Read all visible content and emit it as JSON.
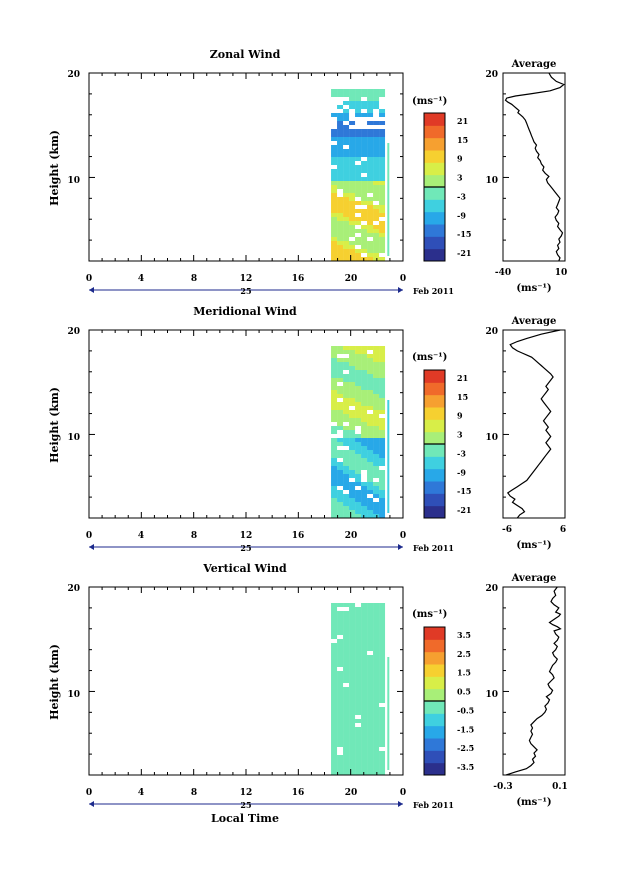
{
  "figure": {
    "xlabel_bottom": "Local Time",
    "x_ticks": [
      "0",
      "4",
      "8",
      "12",
      "16",
      "20",
      "0"
    ],
    "date_day": "25",
    "date_month_year": "Feb 2011",
    "colorbar_unit": "(ms⁻¹)",
    "avg_unit": "(ms⁻¹)"
  },
  "chart_data": [
    {
      "type": "heatmap",
      "title": "Zonal Wind",
      "ylabel": "Height (km)",
      "xlim": [
        0,
        24
      ],
      "ylim": [
        2,
        20
      ],
      "y_ticks": [
        "20",
        "10"
      ],
      "colorbar_ticks": [
        "21",
        "15",
        "9",
        "3",
        "-3",
        "-9",
        "-15",
        "-21"
      ],
      "colorbar_range": [
        -24,
        24
      ],
      "data_x_range": [
        18.5,
        22.3
      ],
      "profile": {
        "title": "Average",
        "x_ticks": [
          "-40",
          "10"
        ],
        "xlim": [
          -40,
          10
        ],
        "x": [
          5,
          6,
          4,
          3,
          5,
          4,
          6,
          5,
          7,
          8,
          6,
          4,
          5,
          3,
          2,
          4,
          5,
          3,
          4,
          5,
          6,
          4,
          2,
          0,
          -2,
          -4,
          -5,
          -3,
          -6,
          -8,
          -7,
          -9,
          -10,
          -12,
          -11,
          -13,
          -14,
          -13,
          -15,
          -16,
          -17,
          -18,
          -19,
          -20,
          -21,
          -22,
          -24,
          -26,
          -28,
          -27,
          -29,
          -31,
          -33,
          -36,
          -38,
          -37,
          -30,
          -18,
          -2,
          6,
          9,
          3,
          -1,
          -3
        ],
        "heights": [
          2.0,
          2.3,
          2.6,
          2.9,
          3.2,
          3.5,
          3.8,
          4.1,
          4.4,
          4.7,
          5.0,
          5.3,
          5.6,
          5.9,
          6.2,
          6.5,
          6.8,
          7.1,
          7.4,
          7.7,
          8.0,
          8.3,
          8.6,
          8.9,
          9.2,
          9.5,
          9.8,
          10.1,
          10.4,
          10.7,
          11.0,
          11.3,
          11.6,
          11.9,
          12.2,
          12.5,
          12.8,
          13.1,
          13.4,
          13.7,
          14.0,
          14.3,
          14.6,
          14.9,
          15.2,
          15.5,
          15.8,
          16.0,
          16.2,
          16.4,
          16.6,
          16.8,
          17.0,
          17.2,
          17.4,
          17.6,
          17.8,
          18.0,
          18.3,
          18.6,
          18.9,
          19.2,
          19.6,
          20.0
        ]
      }
    },
    {
      "type": "heatmap",
      "title": "Meridional Wind",
      "ylabel": "Height (km)",
      "xlim": [
        0,
        24
      ],
      "ylim": [
        2,
        20
      ],
      "y_ticks": [
        "20",
        "10"
      ],
      "colorbar_ticks": [
        "21",
        "15",
        "9",
        "3",
        "-3",
        "-9",
        "-15",
        "-21"
      ],
      "colorbar_range": [
        -24,
        24
      ],
      "data_x_range": [
        18.5,
        22.3
      ],
      "profile": {
        "title": "Average",
        "x_ticks": [
          "-6",
          "6"
        ],
        "xlim": [
          -7,
          6
        ],
        "x": [
          -4,
          -3.5,
          -2.5,
          -3,
          -4,
          -5,
          -4.5,
          -5.5,
          -6,
          -5,
          -4,
          -3,
          -2,
          -1.5,
          -1,
          -0.5,
          0,
          0.5,
          1,
          1.5,
          2,
          2.5,
          3,
          2.5,
          2,
          2.5,
          3,
          2.5,
          2,
          2.5,
          2,
          1.5,
          2,
          2.5,
          3,
          2.5,
          2,
          1.5,
          1,
          1.5,
          2,
          2.5,
          2,
          2.5,
          3,
          3.5,
          3,
          2.5,
          2,
          1.5,
          1,
          0.5,
          0,
          -0.5,
          -1,
          -2,
          -3,
          -4,
          -5,
          -5.5,
          -4,
          -2,
          1,
          5
        ],
        "heights": [
          2.0,
          2.3,
          2.6,
          2.9,
          3.2,
          3.5,
          3.8,
          4.1,
          4.4,
          4.7,
          5.0,
          5.3,
          5.6,
          5.9,
          6.2,
          6.5,
          6.8,
          7.1,
          7.4,
          7.7,
          8.0,
          8.3,
          8.6,
          8.9,
          9.2,
          9.5,
          9.8,
          10.1,
          10.4,
          10.7,
          11.0,
          11.3,
          11.6,
          11.9,
          12.2,
          12.5,
          12.8,
          13.1,
          13.4,
          13.7,
          14.0,
          14.3,
          14.6,
          14.9,
          15.2,
          15.5,
          15.8,
          16.0,
          16.2,
          16.4,
          16.6,
          16.8,
          17.0,
          17.2,
          17.4,
          17.6,
          17.8,
          18.0,
          18.3,
          18.6,
          18.9,
          19.2,
          19.6,
          20.0
        ]
      }
    },
    {
      "type": "heatmap",
      "title": "Vertical Wind",
      "ylabel": "Height (km)",
      "xlim": [
        0,
        24
      ],
      "ylim": [
        2,
        20
      ],
      "y_ticks": [
        "20",
        "10"
      ],
      "colorbar_ticks": [
        "3.5",
        "2.5",
        "1.5",
        "0.5",
        "-0.5",
        "-1.5",
        "-2.5",
        "-3.5"
      ],
      "colorbar_range": [
        -4,
        4
      ],
      "data_x_range": [
        18.5,
        22.3
      ],
      "profile": {
        "title": "Average",
        "x_ticks": [
          "-0.3",
          "0.1"
        ],
        "xlim": [
          -0.3,
          0.1
        ],
        "x": [
          -0.28,
          -0.22,
          -0.15,
          -0.12,
          -0.1,
          -0.11,
          -0.09,
          -0.1,
          -0.08,
          -0.1,
          -0.12,
          -0.13,
          -0.12,
          -0.11,
          -0.12,
          -0.11,
          -0.12,
          -0.1,
          -0.08,
          -0.05,
          -0.03,
          -0.02,
          -0.03,
          -0.01,
          0.0,
          -0.02,
          0.01,
          0.02,
          0.0,
          -0.01,
          0.01,
          0.03,
          0.02,
          0.0,
          0.01,
          0.02,
          0.04,
          0.05,
          0.03,
          0.02,
          0.04,
          0.05,
          0.03,
          0.05,
          0.06,
          0.04,
          0.03,
          0.07,
          0.05,
          0.02,
          0.0,
          0.02,
          0.04,
          0.06,
          0.07,
          0.04,
          0.05,
          0.06,
          0.03,
          0.01,
          0.02,
          0.04,
          0.03,
          0.05
        ],
        "heights": [
          2.0,
          2.3,
          2.6,
          2.9,
          3.2,
          3.5,
          3.8,
          4.1,
          4.4,
          4.7,
          5.0,
          5.3,
          5.6,
          5.9,
          6.2,
          6.5,
          6.8,
          7.1,
          7.4,
          7.7,
          8.0,
          8.3,
          8.6,
          8.9,
          9.2,
          9.5,
          9.8,
          10.1,
          10.4,
          10.7,
          11.0,
          11.3,
          11.6,
          11.9,
          12.2,
          12.5,
          12.8,
          13.1,
          13.4,
          13.7,
          14.0,
          14.3,
          14.6,
          14.9,
          15.2,
          15.5,
          15.8,
          16.0,
          16.2,
          16.4,
          16.6,
          16.8,
          17.0,
          17.2,
          17.4,
          17.6,
          17.8,
          18.0,
          18.3,
          18.6,
          18.9,
          19.2,
          19.6,
          20.0
        ]
      }
    }
  ],
  "colormap": [
    "#2b2f8c",
    "#2f4fb8",
    "#2f78d8",
    "#28a8e8",
    "#3fd0e0",
    "#70e8b8",
    "#a8ef78",
    "#d8ee48",
    "#f6d030",
    "#f6a030",
    "#f06a2a",
    "#e03a26"
  ]
}
